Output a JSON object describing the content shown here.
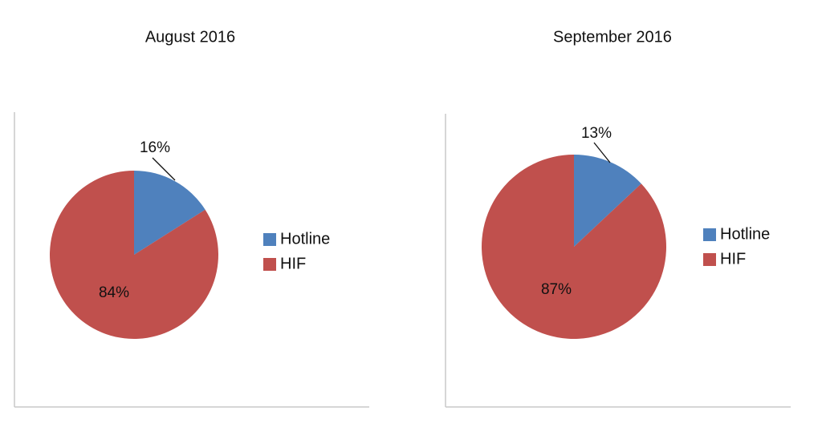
{
  "chart_data": [
    {
      "type": "pie",
      "title": "August 2016",
      "categories": [
        "Hotline",
        "HIF"
      ],
      "values": [
        16,
        84
      ],
      "value_labels": [
        "16%",
        "84%"
      ],
      "colors": [
        "#4f81bd",
        "#c0504d"
      ]
    },
    {
      "type": "pie",
      "title": "September 2016",
      "categories": [
        "Hotline",
        "HIF"
      ],
      "values": [
        13,
        87
      ],
      "value_labels": [
        "13%",
        "87%"
      ],
      "colors": [
        "#4f81bd",
        "#c0504d"
      ]
    }
  ]
}
